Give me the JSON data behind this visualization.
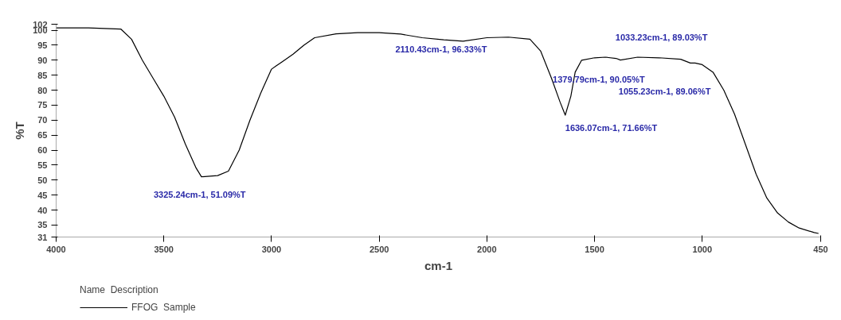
{
  "chart_data": {
    "type": "line",
    "xlabel": "cm-1",
    "ylabel": "%T",
    "legend_title": "Name  Description",
    "legend": "bottom left",
    "grid": false,
    "marker": "none",
    "line_style": "solid",
    "xlim": [
      4000,
      450
    ],
    "xticks": [
      4000,
      3500,
      3000,
      2500,
      2000,
      1500,
      1000,
      450
    ],
    "ylim": [
      31,
      102
    ],
    "yticks": [
      31,
      35,
      40,
      45,
      50,
      55,
      60,
      65,
      70,
      75,
      80,
      85,
      90,
      95,
      100,
      102
    ],
    "series": [
      {
        "name": "FFOG  Sample",
        "color": "#000000",
        "x": [
          4000,
          3850,
          3700,
          3650,
          3600,
          3550,
          3500,
          3450,
          3400,
          3350,
          3325.24,
          3250,
          3200,
          3150,
          3100,
          3050,
          3000,
          2980,
          2950,
          2900,
          2850,
          2800,
          2700,
          2600,
          2500,
          2400,
          2300,
          2200,
          2110.43,
          2000,
          1900,
          1800,
          1750,
          1700,
          1660,
          1636.07,
          1610,
          1590,
          1560,
          1500,
          1450,
          1400,
          1379.79,
          1300,
          1200,
          1100,
          1055.23,
          1033.23,
          1000,
          950,
          900,
          850,
          800,
          750,
          700,
          650,
          600,
          550,
          480,
          460
        ],
        "values": [
          100.8,
          100.8,
          100.4,
          97,
          90,
          84,
          78,
          71,
          62,
          54,
          51.09,
          51.5,
          53,
          60,
          70,
          79,
          87,
          88,
          89.5,
          92,
          95,
          97.5,
          98.8,
          99.2,
          99.2,
          98.7,
          97.5,
          96.8,
          96.33,
          97.5,
          97.7,
          97,
          93,
          84,
          76,
          71.66,
          78,
          86,
          90,
          90.8,
          91,
          90.6,
          90.05,
          91,
          90.8,
          90.3,
          89.06,
          89.03,
          88.5,
          86,
          80,
          72,
          62,
          52,
          44,
          39,
          36,
          34,
          32.5,
          32.2
        ]
      }
    ],
    "annotations": [
      {
        "text": "3325.24cm-1, 51.09%T",
        "x": 3325.24,
        "y": 51.09
      },
      {
        "text": "2110.43cm-1, 96.33%T",
        "x": 2110.43,
        "y": 96.33
      },
      {
        "text": "1636.07cm-1, 71.66%T",
        "x": 1636.07,
        "y": 71.66
      },
      {
        "text": "1379.79cm-1, 90.05%T",
        "x": 1379.79,
        "y": 90.05
      },
      {
        "text": "1055.23cm-1, 89.06%T",
        "x": 1055.23,
        "y": 89.06
      },
      {
        "text": "1033.23cm-1, 89.03%T",
        "x": 1033.23,
        "y": 89.03
      }
    ]
  }
}
